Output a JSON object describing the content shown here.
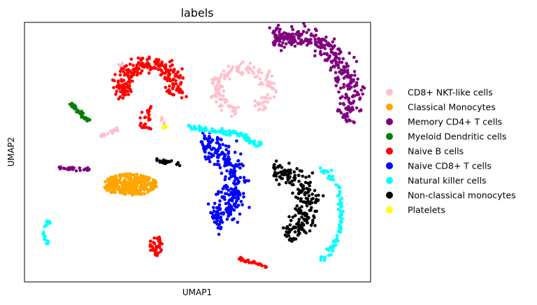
{
  "chart_data": {
    "type": "scatter",
    "title": "labels",
    "xlabel": "UMAP1",
    "ylabel": "UMAP2",
    "xlim": [
      0,
      100
    ],
    "ylim": [
      0,
      100
    ],
    "grid": false,
    "ticks": false,
    "legend_position": "right",
    "series": [
      {
        "name": "CD8+ NKT-like cells",
        "color": "#ffc0cb",
        "clusters": [
          {
            "shape": "arc",
            "cx": 63,
            "cy": 74,
            "rx": 8,
            "ry": 8,
            "a0": -60,
            "a1": 260,
            "width": 2.3,
            "n": 160
          },
          {
            "shape": "line",
            "x0": 27.5,
            "y0": 84.5,
            "x1": 28.5,
            "y1": 81.5,
            "width": 0.6,
            "n": 10
          },
          {
            "shape": "line",
            "x0": 22,
            "y0": 56,
            "x1": 27,
            "y1": 59,
            "width": 0.6,
            "n": 18
          },
          {
            "shape": "line",
            "x0": 39.5,
            "y0": 63.5,
            "x1": 40.5,
            "y1": 60.5,
            "width": 0.5,
            "n": 6
          }
        ]
      },
      {
        "name": "Classical Monocytes",
        "color": "#ffa500",
        "clusters": [
          {
            "shape": "blob",
            "cx": 30.5,
            "cy": 37.5,
            "rx": 8,
            "ry": 4.2,
            "n": 300
          }
        ]
      },
      {
        "name": "Memory CD4+ T cells",
        "color": "#800080",
        "clusters": [
          {
            "shape": "arc",
            "cx": 76,
            "cy": 72,
            "rx": 18,
            "ry": 23,
            "a0": -25,
            "a1": 105,
            "width": 3.5,
            "n": 340
          },
          {
            "shape": "line",
            "x0": 10,
            "y0": 44,
            "x1": 19,
            "y1": 43,
            "width": 0.9,
            "n": 24
          }
        ]
      },
      {
        "name": "Myeloid Dendritic cells",
        "color": "#008000",
        "clusters": [
          {
            "shape": "line",
            "x0": 13,
            "y0": 69,
            "x1": 18.5,
            "y1": 62,
            "width": 0.6,
            "n": 30
          }
        ]
      },
      {
        "name": "Naive B cells",
        "color": "#ff0000",
        "clusters": [
          {
            "shape": "arc",
            "cx": 36,
            "cy": 76,
            "rx": 8,
            "ry": 8,
            "a0": -30,
            "a1": 215,
            "width": 3.0,
            "n": 240
          },
          {
            "shape": "line",
            "x0": 36,
            "y0": 68,
            "x1": 35,
            "y1": 59,
            "width": 2.0,
            "n": 25
          },
          {
            "shape": "blob",
            "cx": 38,
            "cy": 14,
            "rx": 1.8,
            "ry": 4,
            "n": 40
          },
          {
            "shape": "line",
            "x0": 62,
            "y0": 9,
            "x1": 70,
            "y1": 6,
            "width": 0.7,
            "n": 30
          }
        ]
      },
      {
        "name": "Naive CD8+ T cells",
        "color": "#0000ff",
        "clusters": [
          {
            "shape": "arc",
            "cx": 51,
            "cy": 38,
            "rx": 10,
            "ry": 15,
            "a0": -70,
            "a1": 90,
            "width": 3.6,
            "n": 290
          }
        ]
      },
      {
        "name": "Natural killer cells",
        "color": "#00ffff",
        "clusters": [
          {
            "shape": "line",
            "x0": 47,
            "y0": 60,
            "x1": 62,
            "y1": 57,
            "width": 0.9,
            "n": 60
          },
          {
            "shape": "line",
            "x0": 62,
            "y0": 57,
            "x1": 69,
            "y1": 52,
            "width": 1.2,
            "n": 35
          },
          {
            "shape": "arc",
            "cx": 84,
            "cy": 26.5,
            "rx": 7.5,
            "ry": 17.5,
            "a0": -80,
            "a1": 80,
            "width": 0.8,
            "n": 90
          },
          {
            "shape": "arc",
            "cx": 8,
            "cy": 19,
            "rx": 2.5,
            "ry": 4.5,
            "a0": 100,
            "a1": 250,
            "width": 0.5,
            "n": 20
          }
        ]
      },
      {
        "name": "Non-classical monocytes",
        "color": "#000000",
        "clusters": [
          {
            "shape": "arc",
            "cx": 72,
            "cy": 30,
            "rx": 10,
            "ry": 13,
            "a0": -70,
            "a1": 90,
            "width": 3.2,
            "n": 220
          },
          {
            "shape": "line",
            "x0": 38,
            "y0": 47,
            "x1": 45,
            "y1": 45,
            "width": 0.9,
            "n": 22
          }
        ]
      },
      {
        "name": "Platelets",
        "color": "#ffff00",
        "clusters": [
          {
            "shape": "blob",
            "cx": 40.5,
            "cy": 59.5,
            "rx": 0.5,
            "ry": 0.7,
            "n": 6
          }
        ]
      }
    ]
  }
}
